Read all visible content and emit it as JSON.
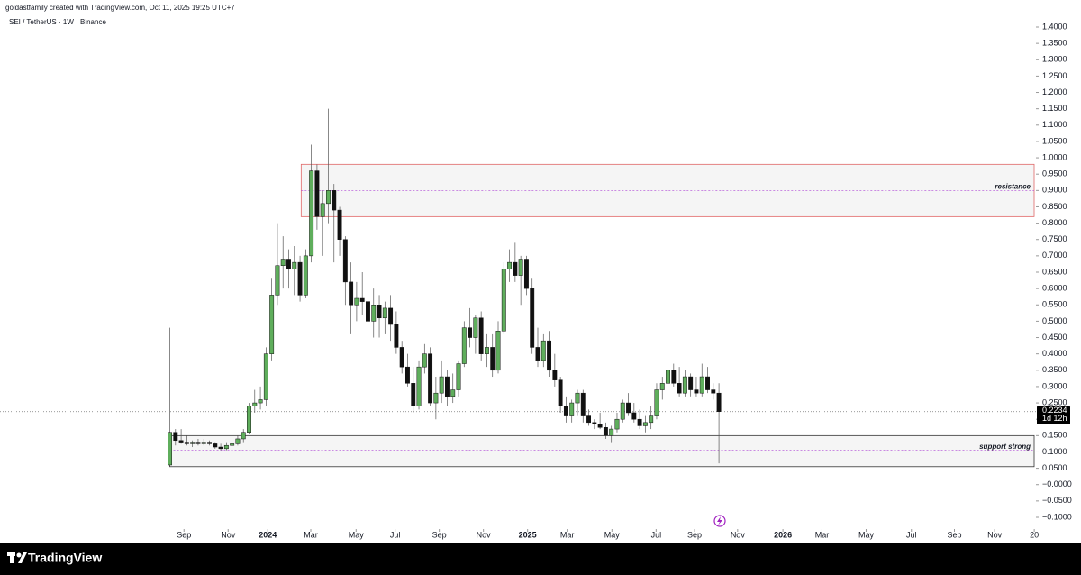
{
  "header": "goldastfamily created with TradingView.com, Oct 11, 2025 19:25 UTC+7",
  "footer": "TradingView",
  "chart_data": {
    "type": "candlestick",
    "title": "SEI / TetherUS · 1W · Binance",
    "up_color": "#5fae5c",
    "down_color": "#111111",
    "open": [
      0.06,
      0.16,
      0.135,
      0.13,
      0.125,
      0.13,
      0.125,
      0.13,
      0.125,
      0.115,
      0.11,
      0.12,
      0.125,
      0.14,
      0.16,
      0.24,
      0.25,
      0.26,
      0.4,
      0.58,
      0.67,
      0.69,
      0.66,
      0.68,
      0.58,
      0.7,
      0.96,
      0.82,
      0.86,
      0.9,
      0.84,
      0.75,
      0.62,
      0.55,
      0.57,
      0.56,
      0.5,
      0.55,
      0.51,
      0.54,
      0.49,
      0.42,
      0.36,
      0.31,
      0.24,
      0.36,
      0.4,
      0.25,
      0.28,
      0.33,
      0.27,
      0.29,
      0.37,
      0.48,
      0.45,
      0.51,
      0.4,
      0.42,
      0.35,
      0.47,
      0.66,
      0.68,
      0.64,
      0.69,
      0.6,
      0.42,
      0.38,
      0.44,
      0.35,
      0.32,
      0.24,
      0.21,
      0.25,
      0.28,
      0.21,
      0.19,
      0.185,
      0.175,
      0.15,
      0.17,
      0.2,
      0.25,
      0.22,
      0.2,
      0.18,
      0.19,
      0.21,
      0.29,
      0.31,
      0.35,
      0.31,
      0.28,
      0.33,
      0.29,
      0.28,
      0.33,
      0.29,
      0.28
    ],
    "high": [
      0.48,
      0.17,
      0.17,
      0.15,
      0.135,
      0.14,
      0.14,
      0.135,
      0.13,
      0.125,
      0.13,
      0.135,
      0.15,
      0.17,
      0.25,
      0.29,
      0.3,
      0.42,
      0.63,
      0.8,
      0.76,
      0.72,
      0.73,
      0.7,
      0.72,
      1.04,
      0.98,
      0.9,
      1.15,
      0.92,
      0.85,
      0.76,
      0.68,
      0.62,
      0.65,
      0.62,
      0.6,
      0.58,
      0.56,
      0.58,
      0.53,
      0.44,
      0.4,
      0.36,
      0.38,
      0.43,
      0.42,
      0.33,
      0.38,
      0.35,
      0.34,
      0.38,
      0.5,
      0.54,
      0.52,
      0.53,
      0.46,
      0.46,
      0.5,
      0.68,
      0.72,
      0.74,
      0.7,
      0.7,
      0.63,
      0.48,
      0.46,
      0.47,
      0.4,
      0.33,
      0.27,
      0.26,
      0.29,
      0.29,
      0.23,
      0.2,
      0.22,
      0.19,
      0.18,
      0.22,
      0.26,
      0.28,
      0.25,
      0.23,
      0.21,
      0.24,
      0.31,
      0.33,
      0.39,
      0.37,
      0.36,
      0.35,
      0.34,
      0.33,
      0.37,
      0.36,
      0.31,
      0.31
    ],
    "low": [
      0.06,
      0.12,
      0.125,
      0.12,
      0.115,
      0.12,
      0.12,
      0.12,
      0.11,
      0.105,
      0.105,
      0.11,
      0.12,
      0.13,
      0.155,
      0.22,
      0.23,
      0.24,
      0.38,
      0.55,
      0.6,
      0.6,
      0.58,
      0.56,
      0.57,
      0.68,
      0.78,
      0.7,
      0.8,
      0.68,
      0.7,
      0.55,
      0.46,
      0.5,
      0.52,
      0.48,
      0.45,
      0.45,
      0.46,
      0.44,
      0.4,
      0.34,
      0.3,
      0.22,
      0.23,
      0.34,
      0.24,
      0.2,
      0.25,
      0.24,
      0.25,
      0.27,
      0.36,
      0.42,
      0.4,
      0.38,
      0.36,
      0.33,
      0.34,
      0.46,
      0.62,
      0.62,
      0.55,
      0.58,
      0.4,
      0.36,
      0.36,
      0.33,
      0.3,
      0.22,
      0.19,
      0.19,
      0.21,
      0.19,
      0.18,
      0.17,
      0.17,
      0.14,
      0.13,
      0.16,
      0.19,
      0.21,
      0.19,
      0.17,
      0.16,
      0.17,
      0.2,
      0.26,
      0.28,
      0.3,
      0.27,
      0.27,
      0.27,
      0.27,
      0.27,
      0.28,
      0.26,
      0.065
    ],
    "close": [
      0.16,
      0.135,
      0.13,
      0.125,
      0.13,
      0.125,
      0.13,
      0.125,
      0.115,
      0.11,
      0.12,
      0.125,
      0.14,
      0.16,
      0.24,
      0.25,
      0.26,
      0.4,
      0.58,
      0.67,
      0.69,
      0.66,
      0.68,
      0.58,
      0.7,
      0.96,
      0.82,
      0.86,
      0.9,
      0.84,
      0.75,
      0.62,
      0.55,
      0.57,
      0.56,
      0.5,
      0.55,
      0.51,
      0.54,
      0.49,
      0.42,
      0.36,
      0.31,
      0.24,
      0.36,
      0.4,
      0.25,
      0.28,
      0.33,
      0.27,
      0.29,
      0.37,
      0.48,
      0.45,
      0.51,
      0.4,
      0.42,
      0.35,
      0.47,
      0.66,
      0.68,
      0.64,
      0.69,
      0.6,
      0.42,
      0.38,
      0.44,
      0.35,
      0.32,
      0.24,
      0.21,
      0.25,
      0.28,
      0.21,
      0.19,
      0.185,
      0.175,
      0.15,
      0.17,
      0.2,
      0.25,
      0.22,
      0.2,
      0.18,
      0.19,
      0.21,
      0.29,
      0.31,
      0.35,
      0.31,
      0.28,
      0.33,
      0.29,
      0.28,
      0.33,
      0.29,
      0.28,
      0.2234
    ],
    "xlim": [
      -30,
      153
    ],
    "xticks": [
      {
        "value": 2.5,
        "label": "Sep"
      },
      {
        "value": 10.3,
        "label": "Nov"
      },
      {
        "value": 17.3,
        "label": "2024"
      },
      {
        "value": 24.9,
        "label": "Mar"
      },
      {
        "value": 32.9,
        "label": "May"
      },
      {
        "value": 39.8,
        "label": "Jul"
      },
      {
        "value": 47.6,
        "label": "Sep"
      },
      {
        "value": 55.4,
        "label": "Nov"
      },
      {
        "value": 63.2,
        "label": "2025"
      },
      {
        "value": 70.2,
        "label": "Mar"
      },
      {
        "value": 78.1,
        "label": "May"
      },
      {
        "value": 85.9,
        "label": "Jul"
      },
      {
        "value": 92.7,
        "label": "Sep"
      },
      {
        "value": 100.3,
        "label": "Nov"
      },
      {
        "value": 108.3,
        "label": "2026"
      },
      {
        "value": 115.2,
        "label": "Mar"
      },
      {
        "value": 123,
        "label": "May"
      },
      {
        "value": 131,
        "label": "Jul"
      },
      {
        "value": 138.6,
        "label": "Sep"
      },
      {
        "value": 145.7,
        "label": "Nov"
      },
      {
        "value": 152.7,
        "label": "20"
      }
    ],
    "ylim": [
      -0.1,
      1.4
    ],
    "yticks": [
      {
        "value": 1.4,
        "label": "1.4000"
      },
      {
        "value": 1.35,
        "label": "1.3500"
      },
      {
        "value": 1.3,
        "label": "1.3000"
      },
      {
        "value": 1.25,
        "label": "1.2500"
      },
      {
        "value": 1.2,
        "label": "1.2000"
      },
      {
        "value": 1.15,
        "label": "1.1500"
      },
      {
        "value": 1.1,
        "label": "1.1000"
      },
      {
        "value": 1.05,
        "label": "1.0500"
      },
      {
        "value": 1.0,
        "label": "1.0000"
      },
      {
        "value": 0.95,
        "label": "0.9500"
      },
      {
        "value": 0.9,
        "label": "0.9000"
      },
      {
        "value": 0.85,
        "label": "0.8500"
      },
      {
        "value": 0.8,
        "label": "0.8000"
      },
      {
        "value": 0.75,
        "label": "0.7500"
      },
      {
        "value": 0.7,
        "label": "0.7000"
      },
      {
        "value": 0.65,
        "label": "0.6500"
      },
      {
        "value": 0.6,
        "label": "0.6000"
      },
      {
        "value": 0.55,
        "label": "0.5500"
      },
      {
        "value": 0.5,
        "label": "0.5000"
      },
      {
        "value": 0.45,
        "label": "0.4500"
      },
      {
        "value": 0.4,
        "label": "0.4000"
      },
      {
        "value": 0.35,
        "label": "0.3500"
      },
      {
        "value": 0.3,
        "label": "0.3000"
      },
      {
        "value": 0.25,
        "label": "0.2500"
      },
      {
        "value": 0.2,
        "label": "0.2000"
      },
      {
        "value": 0.15,
        "label": "0.1500"
      },
      {
        "value": 0.1,
        "label": "0.1000"
      },
      {
        "value": 0.05,
        "label": "0.0500"
      },
      {
        "value": 0,
        "label": "−0.0000"
      },
      {
        "value": -0.05,
        "label": "−0.0500"
      },
      {
        "value": -0.1,
        "label": "−0.1000"
      }
    ],
    "zones": [
      {
        "label": "resistance",
        "low": 0.82,
        "high": 0.98,
        "mid": 0.9,
        "start": 23.2,
        "color": "#e06666"
      },
      {
        "label": "support strong",
        "low": 0.055,
        "high": 0.15,
        "mid": 0.105,
        "start": 0,
        "color": "#333333"
      }
    ],
    "last_price": {
      "value": 0.2234,
      "label": "0.2234"
    },
    "countdown": "1d 12h"
  }
}
